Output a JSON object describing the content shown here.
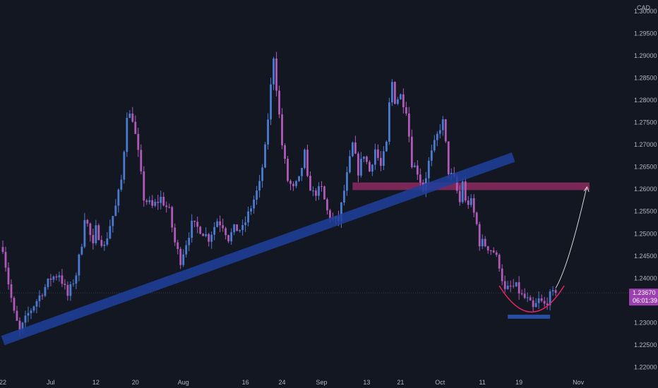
{
  "chart_data": {
    "type": "candlestick",
    "currency_label": "CAD",
    "colors": {
      "background": "#131722",
      "up_candle": "#4a7bd0",
      "down_candle": "#b05ab8",
      "trendline": "#1f3f9c",
      "resistance_zone": "#8e2a61",
      "support_zone": "#2c58b8",
      "curve": "#e0245e",
      "arrow": "#e8e8e8",
      "last_price_bg": "#9c3fb0",
      "axis_text": "#b2b5be"
    },
    "y_axis": {
      "ticks": [
        "1.30000",
        "1.29500",
        "1.29000",
        "1.28500",
        "1.28000",
        "1.27500",
        "1.27000",
        "1.26500",
        "1.26000",
        "1.25500",
        "1.25000",
        "1.24500",
        "1.24000",
        "1.23500",
        "1.23000",
        "1.22500",
        "1.22000"
      ],
      "range": [
        1.2185,
        1.3025
      ]
    },
    "x_axis": {
      "ticks": [
        "22",
        "Jul",
        "12",
        "20",
        "Aug",
        "16",
        "24",
        "Sep",
        "13",
        "21",
        "Oct",
        "11",
        "19",
        "Nov"
      ],
      "tick_index": [
        0,
        17,
        33,
        47,
        64,
        86,
        99,
        113,
        129,
        141,
        155,
        170,
        183,
        204
      ],
      "index_range": [
        -1,
        222
      ]
    },
    "last_price": {
      "value": "1.23670",
      "countdown": "06:01:39",
      "price": 1.2367
    },
    "trendline": {
      "from": {
        "index": 0,
        "price": 1.226
      },
      "to": {
        "index": 181,
        "price": 1.2672
      }
    },
    "resistance_zone": {
      "from_index": 124,
      "to_index": 208,
      "low": 1.2598,
      "high": 1.2615
    },
    "support_zone": {
      "from_index": 179,
      "to_index": 194,
      "low": 1.2309,
      "high": 1.2318
    },
    "price_anchors": [
      [
        0,
        1.247
      ],
      [
        2,
        1.239
      ],
      [
        4,
        1.232
      ],
      [
        6,
        1.228
      ],
      [
        9,
        1.232
      ],
      [
        12,
        1.235
      ],
      [
        15,
        1.238
      ],
      [
        17,
        1.24
      ],
      [
        20,
        1.241
      ],
      [
        23,
        1.236
      ],
      [
        26,
        1.241
      ],
      [
        28,
        1.248
      ],
      [
        29,
        1.254
      ],
      [
        30,
        1.252
      ],
      [
        32,
        1.247
      ],
      [
        33,
        1.251
      ],
      [
        36,
        1.247
      ],
      [
        38,
        1.252
      ],
      [
        40,
        1.256
      ],
      [
        42,
        1.262
      ],
      [
        43,
        1.269
      ],
      [
        44,
        1.277
      ],
      [
        46,
        1.276
      ],
      [
        48,
        1.268
      ],
      [
        50,
        1.258
      ],
      [
        53,
        1.256
      ],
      [
        56,
        1.258
      ],
      [
        59,
        1.255
      ],
      [
        61,
        1.248
      ],
      [
        63,
        1.244
      ],
      [
        65,
        1.248
      ],
      [
        67,
        1.252
      ],
      [
        70,
        1.251
      ],
      [
        73,
        1.249
      ],
      [
        76,
        1.253
      ],
      [
        78,
        1.252
      ],
      [
        80,
        1.249
      ],
      [
        82,
        1.251
      ],
      [
        85,
        1.251
      ],
      [
        88,
        1.256
      ],
      [
        91,
        1.261
      ],
      [
        93,
        1.269
      ],
      [
        95,
        1.283
      ],
      [
        96,
        1.29
      ],
      [
        97,
        1.283
      ],
      [
        99,
        1.27
      ],
      [
        101,
        1.262
      ],
      [
        103,
        1.26
      ],
      [
        105,
        1.262
      ],
      [
        107,
        1.268
      ],
      [
        108,
        1.262
      ],
      [
        110,
        1.259
      ],
      [
        113,
        1.26
      ],
      [
        115,
        1.255
      ],
      [
        117,
        1.253
      ],
      [
        119,
        1.253
      ],
      [
        122,
        1.263
      ],
      [
        124,
        1.27
      ],
      [
        126,
        1.264
      ],
      [
        128,
        1.268
      ],
      [
        130,
        1.264
      ],
      [
        132,
        1.269
      ],
      [
        134,
        1.265
      ],
      [
        136,
        1.27
      ],
      [
        137,
        1.279
      ],
      [
        138,
        1.284
      ],
      [
        139,
        1.28
      ],
      [
        141,
        1.281
      ],
      [
        143,
        1.278
      ],
      [
        145,
        1.266
      ],
      [
        147,
        1.264
      ],
      [
        149,
        1.26
      ],
      [
        151,
        1.266
      ],
      [
        153,
        1.27
      ],
      [
        155,
        1.274
      ],
      [
        156,
        1.275
      ],
      [
        157,
        1.27
      ],
      [
        158,
        1.264
      ],
      [
        160,
        1.262
      ],
      [
        162,
        1.257
      ],
      [
        163,
        1.262
      ],
      [
        164,
        1.257
      ],
      [
        166,
        1.257
      ],
      [
        168,
        1.252
      ],
      [
        169,
        1.248
      ],
      [
        170,
        1.248
      ],
      [
        172,
        1.247
      ],
      [
        174,
        1.246
      ],
      [
        176,
        1.243
      ],
      [
        178,
        1.237
      ],
      [
        180,
        1.238
      ],
      [
        182,
        1.238
      ],
      [
        184,
        1.236
      ],
      [
        186,
        1.235
      ],
      [
        188,
        1.233
      ],
      [
        190,
        1.235
      ],
      [
        192,
        1.234
      ],
      [
        194,
        1.236
      ],
      [
        196,
        1.2367
      ]
    ]
  }
}
